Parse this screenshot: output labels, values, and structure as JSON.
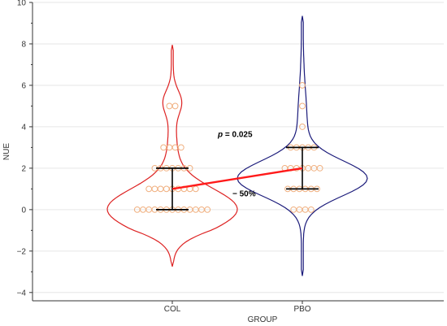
{
  "chart_data": {
    "type": "violin",
    "xlabel": "GROUP",
    "ylabel": "NUE",
    "ylim": [
      -4.4,
      10
    ],
    "yticks": [
      -4,
      -2,
      0,
      2,
      4,
      6,
      8,
      10
    ],
    "categories": [
      "COL",
      "PBO"
    ],
    "grid": "horizontal",
    "colors": {
      "COL": "#dd2222",
      "PBO": "#1a1a7a",
      "points": "#f0b080",
      "trend": "#ff1a1a",
      "summary": "#000000"
    },
    "groups": [
      {
        "name": "COL",
        "q1": 0,
        "median": 1,
        "q3": 2,
        "violin": {
          "min": -2.75,
          "max": 7.95,
          "mode": 0,
          "mode_width": 1.0,
          "secondary": 5.2
        },
        "points": [
          {
            "y": 0,
            "count": 13
          },
          {
            "y": 1,
            "count": 9
          },
          {
            "y": 2,
            "count": 7
          },
          {
            "y": 3,
            "count": 4
          },
          {
            "y": 5,
            "count": 2
          }
        ]
      },
      {
        "name": "PBO",
        "q1": 1,
        "median": 2,
        "q3": 3,
        "violin": {
          "min": -3.2,
          "max": 9.35,
          "mode": 1.5,
          "mode_width": 0.85,
          "secondary": 0
        },
        "points": [
          {
            "y": 0,
            "count": 4
          },
          {
            "y": 1,
            "count": 6
          },
          {
            "y": 2,
            "count": 7
          },
          {
            "y": 3,
            "count": 5
          },
          {
            "y": 4,
            "count": 1
          },
          {
            "y": 5,
            "count": 1
          },
          {
            "y": 6,
            "count": 1
          }
        ]
      }
    ],
    "annotations": {
      "p_label": "p",
      "p_value": " = 0.025",
      "change": "− 50%"
    }
  }
}
